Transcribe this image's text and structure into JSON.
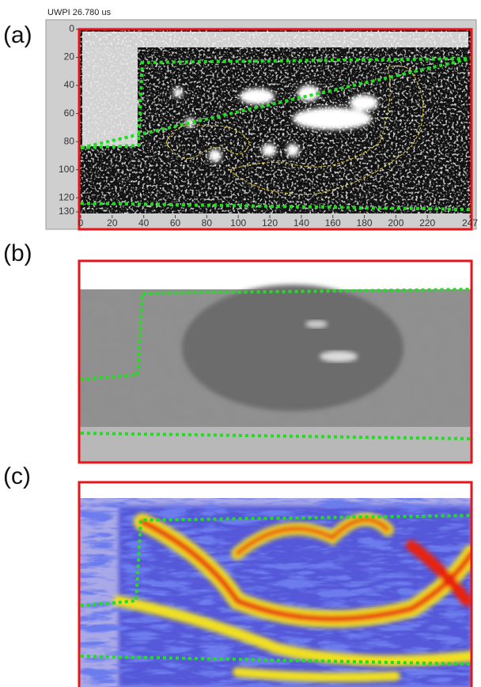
{
  "header": "UWPI 26.780 us",
  "panels": [
    {
      "label": "(a)",
      "xlim": [
        0,
        247
      ],
      "ylim": [
        0,
        130
      ],
      "xticks": [
        0,
        20,
        40,
        60,
        80,
        100,
        120,
        140,
        160,
        180,
        200,
        220,
        247
      ],
      "yticks": [
        0,
        20,
        40,
        60,
        80,
        100,
        120,
        130
      ]
    },
    {
      "label": "(b)"
    },
    {
      "label": "(c)"
    }
  ]
}
